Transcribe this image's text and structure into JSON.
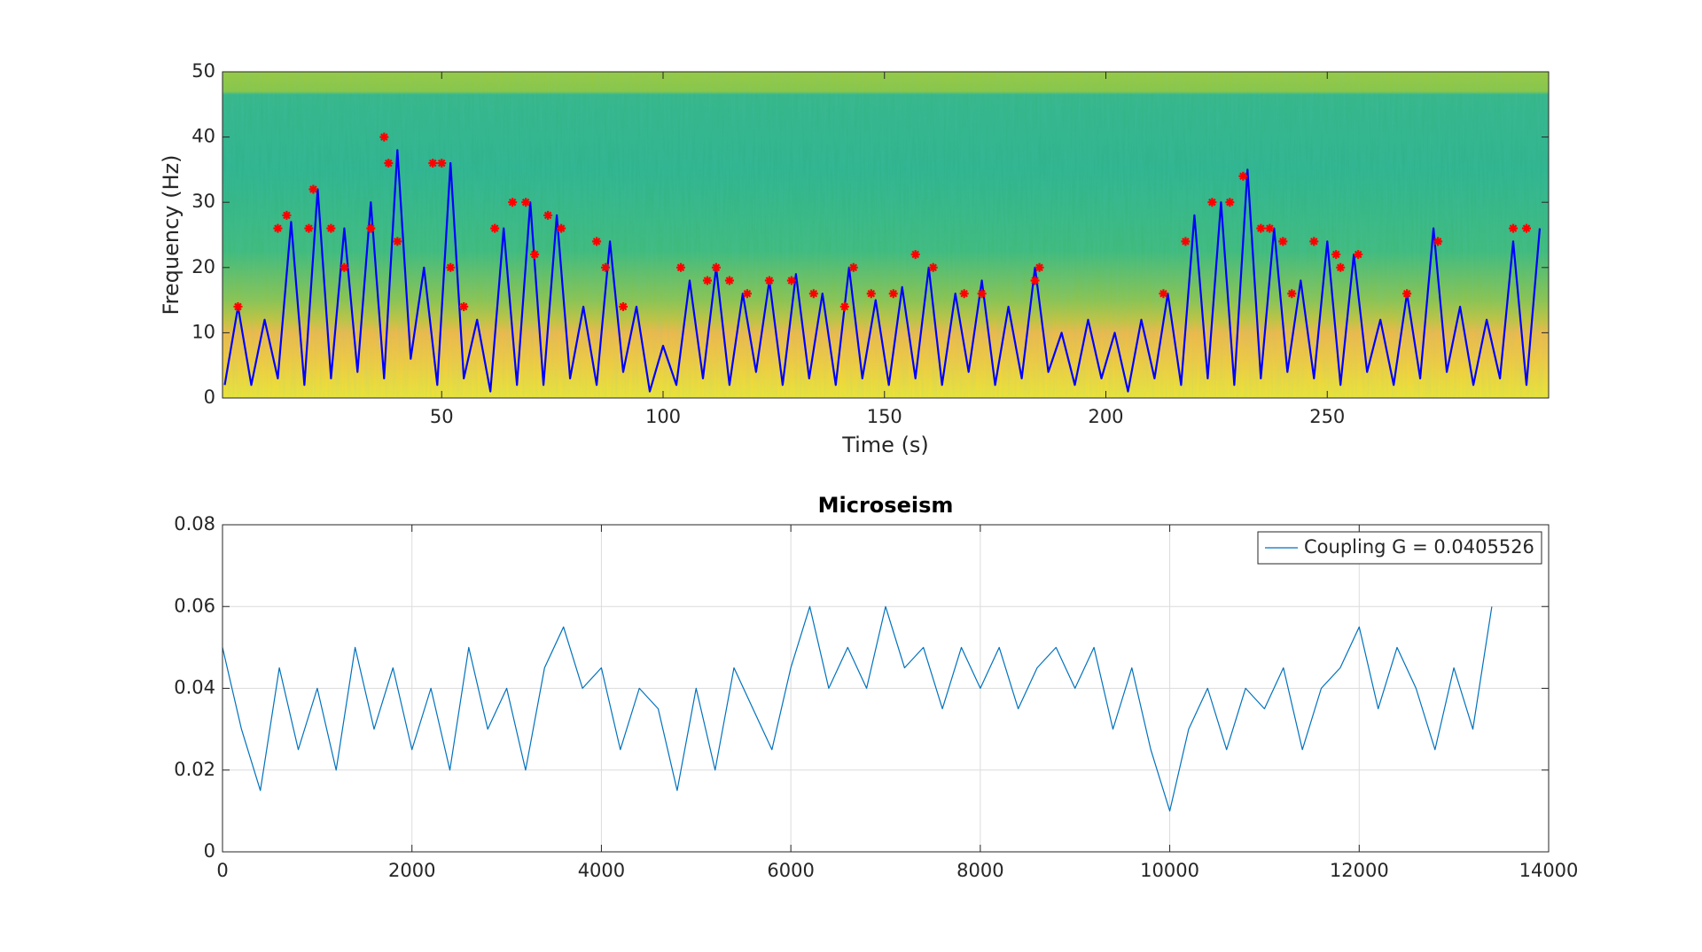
{
  "chart_data": [
    {
      "type": "line",
      "xlabel": "Time (s)",
      "ylabel": "Frequency (Hz)",
      "xlim": [
        0.5,
        300
      ],
      "ylim": [
        0,
        50
      ],
      "xticks": [
        50,
        100,
        150,
        200,
        250
      ],
      "yticks": [
        0,
        10,
        20,
        30,
        40,
        50
      ],
      "grid": false,
      "series": [
        {
          "color": "#0000ff",
          "marker": "none",
          "x": [
            1,
            4,
            7,
            10,
            13,
            16,
            19,
            22,
            25,
            28,
            31,
            34,
            37,
            40,
            43,
            46,
            49,
            52,
            55,
            58,
            61,
            64,
            67,
            70,
            73,
            76,
            79,
            82,
            85,
            88,
            91,
            94,
            97,
            100,
            103,
            106,
            109,
            112,
            115,
            118,
            121,
            124,
            127,
            130,
            133,
            136,
            139,
            142,
            145,
            148,
            151,
            154,
            157,
            160,
            163,
            166,
            169,
            172,
            175,
            178,
            181,
            184,
            187,
            190,
            193,
            196,
            199,
            202,
            205,
            208,
            211,
            214,
            217,
            220,
            223,
            226,
            229,
            232,
            235,
            238,
            241,
            244,
            247,
            250,
            253,
            256,
            259,
            262,
            265,
            268,
            271,
            274,
            277,
            280,
            283,
            286,
            289,
            292,
            295,
            298
          ],
          "values": [
            2,
            14,
            2,
            12,
            3,
            27,
            2,
            32,
            3,
            26,
            4,
            30,
            3,
            38,
            6,
            20,
            2,
            36,
            3,
            12,
            1,
            26,
            2,
            30,
            2,
            28,
            3,
            14,
            2,
            24,
            4,
            14,
            1,
            8,
            2,
            18,
            3,
            20,
            2,
            16,
            4,
            18,
            2,
            19,
            3,
            16,
            2,
            20,
            3,
            15,
            2,
            17,
            3,
            20,
            2,
            16,
            4,
            18,
            2,
            14,
            3,
            20,
            4,
            10,
            2,
            12,
            3,
            10,
            1,
            12,
            3,
            16,
            2,
            28,
            3,
            30,
            2,
            35,
            3,
            26,
            4,
            18,
            3,
            24,
            2,
            22,
            4,
            12,
            2,
            16,
            3,
            26,
            4,
            14,
            2,
            12,
            3,
            24,
            2,
            26
          ]
        },
        {
          "color": "#ff0000",
          "marker": "*",
          "x": [
            4,
            13,
            15,
            20,
            21,
            25,
            28,
            34,
            37,
            38,
            40,
            48,
            50,
            52,
            55,
            62,
            66,
            69,
            71,
            74,
            77,
            85,
            87,
            91,
            104,
            110,
            112,
            115,
            119,
            124,
            129,
            134,
            141,
            143,
            147,
            152,
            157,
            161,
            168,
            172,
            184,
            185,
            213,
            218,
            224,
            228,
            231,
            235,
            237,
            240,
            242,
            247,
            252,
            253,
            257,
            268,
            275,
            292,
            295
          ],
          "values": [
            14,
            26,
            28,
            26,
            32,
            26,
            20,
            26,
            40,
            36,
            24,
            36,
            36,
            20,
            14,
            26,
            30,
            30,
            22,
            28,
            26,
            24,
            20,
            14,
            20,
            18,
            20,
            18,
            16,
            18,
            18,
            16,
            14,
            20,
            16,
            16,
            22,
            20,
            16,
            16,
            18,
            20,
            16,
            24,
            30,
            30,
            34,
            26,
            26,
            24,
            16,
            24,
            22,
            20,
            22,
            16,
            24,
            26,
            26
          ]
        }
      ]
    },
    {
      "type": "line",
      "title": "Microseism",
      "xlim": [
        0,
        14000
      ],
      "ylim": [
        0,
        0.08
      ],
      "xticks": [
        0,
        2000,
        4000,
        6000,
        8000,
        10000,
        12000,
        14000
      ],
      "yticks": [
        0,
        0.02,
        0.04,
        0.06,
        0.08
      ],
      "grid": true,
      "legend": "northeast",
      "series": [
        {
          "name": "Coupling G = 0.0405526",
          "color": "#0072bd",
          "marker": "none",
          "x": [
            0,
            200,
            400,
            600,
            800,
            1000,
            1200,
            1400,
            1600,
            1800,
            2000,
            2200,
            2400,
            2600,
            2800,
            3000,
            3200,
            3400,
            3600,
            3800,
            4000,
            4200,
            4400,
            4600,
            4800,
            5000,
            5200,
            5400,
            5600,
            5800,
            6000,
            6200,
            6400,
            6600,
            6800,
            7000,
            7200,
            7400,
            7600,
            7800,
            8000,
            8200,
            8400,
            8600,
            8800,
            9000,
            9200,
            9400,
            9600,
            9800,
            10000,
            10200,
            10400,
            10600,
            10800,
            11000,
            11200,
            11400,
            11600,
            11800,
            12000,
            12200,
            12400,
            12600,
            12800,
            13000,
            13200,
            13400
          ],
          "values": [
            0.05,
            0.03,
            0.015,
            0.045,
            0.025,
            0.04,
            0.02,
            0.05,
            0.03,
            0.045,
            0.025,
            0.04,
            0.02,
            0.05,
            0.03,
            0.04,
            0.02,
            0.045,
            0.055,
            0.04,
            0.045,
            0.025,
            0.04,
            0.035,
            0.015,
            0.04,
            0.02,
            0.045,
            0.035,
            0.025,
            0.045,
            0.06,
            0.04,
            0.05,
            0.04,
            0.06,
            0.045,
            0.05,
            0.035,
            0.05,
            0.04,
            0.05,
            0.035,
            0.045,
            0.05,
            0.04,
            0.05,
            0.03,
            0.045,
            0.025,
            0.01,
            0.03,
            0.04,
            0.025,
            0.04,
            0.035,
            0.045,
            0.025,
            0.04,
            0.045,
            0.055,
            0.035,
            0.05,
            0.04,
            0.025,
            0.045,
            0.03,
            0.06
          ]
        }
      ]
    }
  ]
}
